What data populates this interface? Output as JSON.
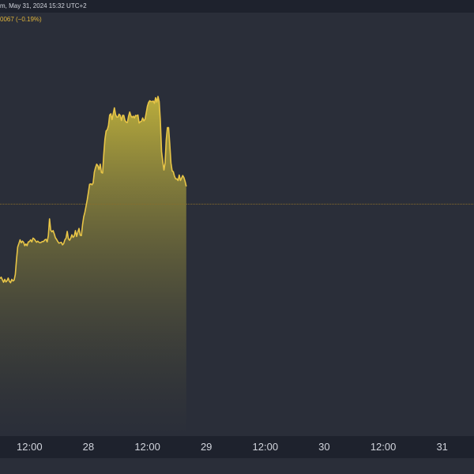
{
  "header": {
    "datetime_text": "m, May 31, 2024 15:32 UTC+2",
    "change_text": "0067 (−0.19%)"
  },
  "colors": {
    "background": "#2a2e39",
    "panel": "#1e222d",
    "line": "#e8c547",
    "fill_top": "#c2b43c",
    "fill_bottom": "#2a2e39",
    "reference_line": "#8a6f2a",
    "tick_text": "#d1d4dc"
  },
  "chart_data": {
    "type": "area",
    "x_unit": "days since May 27, 2024 00:00 (time axis)",
    "x_ticks": [
      {
        "x": 0.5,
        "label": "12:00"
      },
      {
        "x": 1.0,
        "label": "28"
      },
      {
        "x": 1.5,
        "label": "12:00"
      },
      {
        "x": 2.0,
        "label": "29"
      },
      {
        "x": 2.5,
        "label": "12:00"
      },
      {
        "x": 3.0,
        "label": "30"
      },
      {
        "x": 3.5,
        "label": "12:00"
      },
      {
        "x": 4.0,
        "label": "31"
      }
    ],
    "xlim": [
      0.25,
      4.27
    ],
    "ylim": [
      0,
      100
    ],
    "reference_level": 55.2,
    "grid": false,
    "legend": "none",
    "series": [
      {
        "points": [
          [
            0.25,
            37.5
          ],
          [
            0.26,
            37.8
          ],
          [
            0.27,
            37.2
          ],
          [
            0.28,
            36.6
          ],
          [
            0.29,
            37.3
          ],
          [
            0.3,
            36.7
          ],
          [
            0.31,
            37.0
          ],
          [
            0.32,
            37.6
          ],
          [
            0.33,
            36.8
          ],
          [
            0.34,
            36.5
          ],
          [
            0.35,
            37.3
          ],
          [
            0.36,
            36.9
          ],
          [
            0.37,
            37.1
          ],
          [
            0.38,
            38.5
          ],
          [
            0.39,
            42.0
          ],
          [
            0.4,
            45.0
          ],
          [
            0.41,
            45.8
          ],
          [
            0.42,
            46.7
          ],
          [
            0.43,
            46.0
          ],
          [
            0.44,
            46.4
          ],
          [
            0.45,
            46.1
          ],
          [
            0.46,
            45.3
          ],
          [
            0.47,
            45.7
          ],
          [
            0.48,
            45.3
          ],
          [
            0.49,
            46.2
          ],
          [
            0.5,
            46.3
          ],
          [
            0.51,
            46.7
          ],
          [
            0.52,
            46.2
          ],
          [
            0.53,
            47.1
          ],
          [
            0.54,
            46.9
          ],
          [
            0.55,
            46.5
          ],
          [
            0.56,
            46.1
          ],
          [
            0.57,
            46.4
          ],
          [
            0.58,
            46.1
          ],
          [
            0.59,
            46.0
          ],
          [
            0.6,
            46.1
          ],
          [
            0.61,
            46.3
          ],
          [
            0.62,
            46.3
          ],
          [
            0.63,
            46.7
          ],
          [
            0.64,
            46.8
          ],
          [
            0.65,
            46.2
          ],
          [
            0.66,
            47.7
          ],
          [
            0.67,
            51.7
          ],
          [
            0.68,
            49.0
          ],
          [
            0.69,
            48.6
          ],
          [
            0.7,
            48.9
          ],
          [
            0.71,
            48.1
          ],
          [
            0.72,
            47.2
          ],
          [
            0.73,
            46.8
          ],
          [
            0.74,
            46.3
          ],
          [
            0.75,
            45.9
          ],
          [
            0.76,
            46.0
          ],
          [
            0.77,
            46.1
          ],
          [
            0.78,
            45.5
          ],
          [
            0.79,
            45.8
          ],
          [
            0.8,
            46.7
          ],
          [
            0.81,
            47.1
          ],
          [
            0.82,
            48.7
          ],
          [
            0.83,
            46.9
          ],
          [
            0.84,
            46.6
          ],
          [
            0.85,
            47.1
          ],
          [
            0.86,
            47.9
          ],
          [
            0.87,
            47.3
          ],
          [
            0.88,
            47.6
          ],
          [
            0.89,
            48.9
          ],
          [
            0.9,
            47.5
          ],
          [
            0.91,
            48.5
          ],
          [
            0.92,
            49.4
          ],
          [
            0.93,
            47.8
          ],
          [
            0.94,
            47.7
          ],
          [
            0.95,
            50.3
          ],
          [
            0.96,
            52.2
          ],
          [
            0.97,
            53.3
          ],
          [
            0.98,
            54.8
          ],
          [
            0.99,
            56.2
          ],
          [
            1.0,
            58.0
          ],
          [
            1.01,
            59.9
          ],
          [
            1.02,
            60.0
          ],
          [
            1.03,
            59.8
          ],
          [
            1.04,
            60.2
          ],
          [
            1.05,
            62.8
          ],
          [
            1.06,
            63.9
          ],
          [
            1.07,
            64.7
          ],
          [
            1.08,
            64.3
          ],
          [
            1.09,
            63.4
          ],
          [
            1.1,
            64.7
          ],
          [
            1.11,
            62.7
          ],
          [
            1.12,
            62.6
          ],
          [
            1.13,
            66.9
          ],
          [
            1.14,
            70.6
          ],
          [
            1.15,
            72.6
          ],
          [
            1.16,
            72.9
          ],
          [
            1.17,
            73.9
          ],
          [
            1.18,
            76.4
          ],
          [
            1.19,
            76.7
          ],
          [
            1.2,
            75.3
          ],
          [
            1.21,
            76.7
          ],
          [
            1.22,
            78.1
          ],
          [
            1.23,
            76.5
          ],
          [
            1.24,
            75.9
          ],
          [
            1.25,
            75.9
          ],
          [
            1.26,
            76.6
          ],
          [
            1.27,
            76.3
          ],
          [
            1.28,
            75.1
          ],
          [
            1.29,
            76.3
          ],
          [
            1.3,
            76.3
          ],
          [
            1.31,
            75.1
          ],
          [
            1.32,
            74.7
          ],
          [
            1.33,
            74.6
          ],
          [
            1.34,
            76.1
          ],
          [
            1.35,
            77.1
          ],
          [
            1.36,
            76.2
          ],
          [
            1.37,
            75.8
          ],
          [
            1.38,
            76.1
          ],
          [
            1.39,
            75.7
          ],
          [
            1.4,
            76.3
          ],
          [
            1.41,
            76.2
          ],
          [
            1.42,
            76.4
          ],
          [
            1.43,
            74.5
          ],
          [
            1.44,
            74.8
          ],
          [
            1.45,
            74.9
          ],
          [
            1.46,
            75.7
          ],
          [
            1.47,
            75.0
          ],
          [
            1.48,
            75.4
          ],
          [
            1.49,
            76.9
          ],
          [
            1.5,
            78.5
          ],
          [
            1.51,
            79.4
          ],
          [
            1.52,
            79.8
          ],
          [
            1.53,
            79.6
          ],
          [
            1.54,
            79.6
          ],
          [
            1.55,
            79.7
          ],
          [
            1.56,
            79.2
          ],
          [
            1.57,
            80.5
          ],
          [
            1.58,
            79.5
          ],
          [
            1.59,
            80.8
          ],
          [
            1.6,
            79.6
          ],
          [
            1.61,
            75.0
          ],
          [
            1.62,
            67.7
          ],
          [
            1.63,
            65.4
          ],
          [
            1.64,
            63.3
          ],
          [
            1.65,
            65.0
          ],
          [
            1.66,
            70.5
          ],
          [
            1.67,
            73.4
          ],
          [
            1.68,
            73.4
          ],
          [
            1.69,
            69.5
          ],
          [
            1.7,
            65.0
          ],
          [
            1.71,
            63.1
          ],
          [
            1.72,
            62.9
          ],
          [
            1.73,
            61.8
          ],
          [
            1.74,
            61.2
          ],
          [
            1.75,
            61.2
          ],
          [
            1.76,
            60.8
          ],
          [
            1.77,
            62.1
          ],
          [
            1.78,
            60.8
          ],
          [
            1.79,
            61.4
          ],
          [
            1.8,
            62.0
          ],
          [
            1.81,
            61.5
          ],
          [
            1.82,
            60.6
          ],
          [
            1.83,
            59.4
          ]
        ]
      }
    ]
  }
}
